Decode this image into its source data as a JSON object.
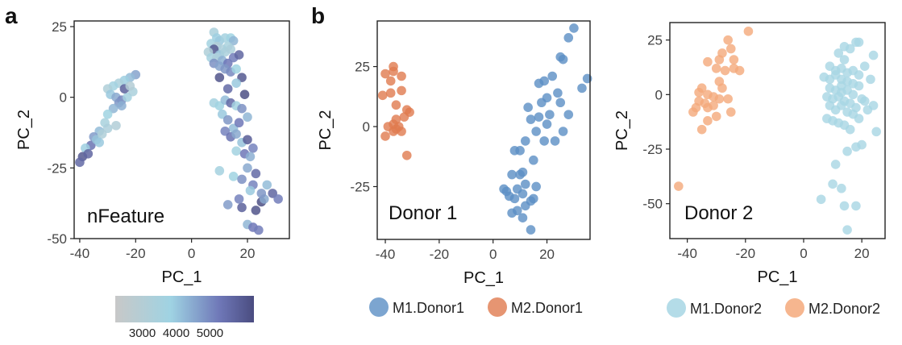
{
  "panel_labels": {
    "a": "a",
    "b": "b"
  },
  "legend_b1": {
    "items": [
      "M1.Donor1",
      "M2.Donor1"
    ]
  },
  "legend_b2": {
    "items": [
      "M1.Donor2",
      "M2.Donor2"
    ]
  },
  "colorbar": {
    "ticks": [
      "3000",
      "4000",
      "5000"
    ],
    "range": [
      2200,
      6300
    ],
    "colors": [
      "#c8c8c8",
      "#9fd3e3",
      "#6f78b8",
      "#4a4c80"
    ]
  },
  "chart_data": [
    {
      "type": "scatter",
      "title": "",
      "xlabel": "PC_1",
      "ylabel": "PC_2",
      "xlim": [
        -42,
        35
      ],
      "ylim": [
        -50,
        27
      ],
      "xticks": [
        -40,
        -20,
        0,
        20
      ],
      "yticks": [
        25,
        0,
        -25,
        -50
      ],
      "xtick_labels": [
        "-40",
        "-20",
        "0",
        "20"
      ],
      "ytick_labels": [
        "25",
        "0",
        "-25",
        "-50"
      ],
      "annotation": "nFeature",
      "color_by": "nFeature",
      "points": [
        [
          -20,
          8,
          4600
        ],
        [
          -22,
          7,
          4200
        ],
        [
          -24,
          6,
          3900
        ],
        [
          -26,
          5,
          3400
        ],
        [
          -28,
          4,
          3700
        ],
        [
          -30,
          3,
          3200
        ],
        [
          -29,
          1,
          4000
        ],
        [
          -27,
          0,
          4500
        ],
        [
          -25,
          -1,
          5000
        ],
        [
          -23,
          0,
          3600
        ],
        [
          -21,
          2,
          3400
        ],
        [
          -24,
          3,
          5800
        ],
        [
          -26,
          -2,
          4800
        ],
        [
          -28,
          -4,
          4300
        ],
        [
          -30,
          -6,
          3800
        ],
        [
          -31,
          -9,
          3500
        ],
        [
          -30,
          -11,
          3300
        ],
        [
          -33,
          -12,
          4200
        ],
        [
          -27,
          -10,
          3100
        ],
        [
          -35,
          -14,
          4700
        ],
        [
          -36,
          -17,
          5400
        ],
        [
          -38,
          -18,
          3900
        ],
        [
          -39,
          -21,
          6000
        ],
        [
          -37,
          -20,
          5700
        ],
        [
          -40,
          -23,
          5600
        ],
        [
          -34,
          -15,
          4100
        ],
        [
          -32,
          -13,
          3200
        ],
        [
          -22,
          4,
          3000
        ],
        [
          -25,
          -3,
          4400
        ],
        [
          -33,
          -16,
          4000
        ],
        [
          8,
          23,
          3400
        ],
        [
          9,
          21,
          3900
        ],
        [
          10,
          20,
          4000
        ],
        [
          12,
          21,
          3600
        ],
        [
          14,
          21,
          3800
        ],
        [
          15,
          20,
          4300
        ],
        [
          7,
          19,
          3700
        ],
        [
          9,
          18,
          3100
        ],
        [
          11,
          17,
          3300
        ],
        [
          13,
          18,
          3500
        ],
        [
          8,
          17,
          6000
        ],
        [
          10,
          15,
          4100
        ],
        [
          12,
          16,
          3400
        ],
        [
          14,
          17,
          3300
        ],
        [
          6,
          16,
          3200
        ],
        [
          7,
          14,
          3600
        ],
        [
          9,
          14,
          3300
        ],
        [
          11,
          13,
          4400
        ],
        [
          13,
          12,
          5300
        ],
        [
          15,
          14,
          5200
        ],
        [
          17,
          15,
          5700
        ],
        [
          8,
          12,
          4900
        ],
        [
          10,
          11,
          4600
        ],
        [
          12,
          10,
          4800
        ],
        [
          10,
          7,
          6100
        ],
        [
          14,
          9,
          5000
        ],
        [
          16,
          10,
          3800
        ],
        [
          18,
          7,
          6000
        ],
        [
          19,
          1,
          6200
        ],
        [
          16,
          5,
          4000
        ],
        [
          13,
          3,
          5600
        ],
        [
          8,
          -2,
          3600
        ],
        [
          10,
          -3,
          3800
        ],
        [
          12,
          -1,
          4200
        ],
        [
          14,
          -2,
          5600
        ],
        [
          16,
          -3,
          3700
        ],
        [
          18,
          -4,
          4900
        ],
        [
          20,
          -7,
          4300
        ],
        [
          11,
          -6,
          4000
        ],
        [
          13,
          -8,
          4800
        ],
        [
          15,
          -11,
          4200
        ],
        [
          17,
          -9,
          5300
        ],
        [
          12,
          -12,
          5100
        ],
        [
          14,
          -14,
          5400
        ],
        [
          16,
          -13,
          4500
        ],
        [
          18,
          -16,
          4100
        ],
        [
          20,
          -15,
          5900
        ],
        [
          22,
          -18,
          5100
        ],
        [
          16,
          -19,
          3700
        ],
        [
          19,
          -20,
          5300
        ],
        [
          21,
          -21,
          4400
        ],
        [
          10,
          -26,
          3600
        ],
        [
          15,
          -28,
          3800
        ],
        [
          20,
          -25,
          4500
        ],
        [
          23,
          -27,
          5600
        ],
        [
          18,
          -29,
          4900
        ],
        [
          22,
          -31,
          5100
        ],
        [
          27,
          -31,
          4200
        ],
        [
          29,
          -34,
          5700
        ],
        [
          31,
          -36,
          5200
        ],
        [
          13,
          -38,
          4700
        ],
        [
          18,
          -39,
          5800
        ],
        [
          25,
          -37,
          6200
        ],
        [
          23,
          -40,
          6100
        ],
        [
          20,
          -45,
          4300
        ],
        [
          22,
          -46,
          5300
        ],
        [
          24,
          -47,
          5200
        ],
        [
          26,
          -36,
          4500
        ],
        [
          21,
          -33,
          4000
        ],
        [
          17,
          -36,
          5100
        ],
        [
          25,
          -34,
          4800
        ]
      ]
    },
    {
      "type": "scatter",
      "title": "",
      "xlabel": "PC_1",
      "ylabel": "PC_2",
      "xlim": [
        -43,
        36
      ],
      "ylim": [
        -47,
        44
      ],
      "xticks": [
        -40,
        -20,
        0,
        20
      ],
      "yticks": [
        25,
        0,
        -25
      ],
      "xtick_labels": [
        "-40",
        "-20",
        "0",
        "20"
      ],
      "ytick_labels": [
        "25",
        "0",
        "-25"
      ],
      "annotation": "Donor 1",
      "series": [
        {
          "name": "M1.Donor1",
          "color": "#5b8ec4",
          "points": [
            [
              30,
              41
            ],
            [
              28,
              37
            ],
            [
              25,
              29
            ],
            [
              26,
              28
            ],
            [
              22,
              21
            ],
            [
              19,
              19
            ],
            [
              17,
              18
            ],
            [
              35,
              20
            ],
            [
              33,
              16
            ],
            [
              24,
              14
            ],
            [
              20,
              12
            ],
            [
              25,
              10
            ],
            [
              18,
              10
            ],
            [
              13,
              8
            ],
            [
              21,
              5
            ],
            [
              28,
              5
            ],
            [
              17,
              4
            ],
            [
              14,
              3
            ],
            [
              20,
              1
            ],
            [
              16,
              -2
            ],
            [
              26,
              -2
            ],
            [
              19,
              -6
            ],
            [
              23,
              -6
            ],
            [
              12,
              -6
            ],
            [
              10,
              -10
            ],
            [
              8,
              -10
            ],
            [
              15,
              -14
            ],
            [
              11,
              -19
            ],
            [
              10,
              -20
            ],
            [
              7,
              -20
            ],
            [
              12,
              -24
            ],
            [
              9,
              -26
            ],
            [
              11,
              -28
            ],
            [
              5,
              -27
            ],
            [
              4,
              -26
            ],
            [
              6,
              -29
            ],
            [
              8,
              -30
            ],
            [
              15,
              -30
            ],
            [
              14,
              -31
            ],
            [
              12,
              -33
            ],
            [
              9,
              -35
            ],
            [
              7,
              -36
            ],
            [
              14,
              -43
            ],
            [
              11,
              -38
            ],
            [
              16,
              -25
            ]
          ]
        },
        {
          "name": "M2.Donor1",
          "color": "#e07a4f",
          "points": [
            [
              -37,
              25
            ],
            [
              -37,
              23
            ],
            [
              -40,
              22
            ],
            [
              -34,
              21
            ],
            [
              -38,
              19
            ],
            [
              -38,
              14
            ],
            [
              -34,
              15
            ],
            [
              -41,
              13
            ],
            [
              -36,
              9
            ],
            [
              -32,
              7
            ],
            [
              -31,
              6
            ],
            [
              -33,
              4
            ],
            [
              -39,
              0
            ],
            [
              -37,
              1
            ],
            [
              -36,
              -1
            ],
            [
              -35,
              0
            ],
            [
              -37,
              -2
            ],
            [
              -40,
              -4
            ],
            [
              -32,
              -12
            ],
            [
              -36,
              3
            ],
            [
              -34,
              -2
            ]
          ]
        }
      ]
    },
    {
      "type": "scatter",
      "title": "",
      "xlabel": "PC_1",
      "ylabel": "PC_2",
      "xlim": [
        -46,
        28
      ],
      "ylim": [
        -66,
        33
      ],
      "xticks": [
        -40,
        -20,
        0,
        20
      ],
      "yticks": [
        25,
        0,
        -25,
        -50
      ],
      "xtick_labels": [
        "-40",
        "-20",
        "0",
        "20"
      ],
      "ytick_labels": [
        "25",
        "0",
        "-25",
        "-50"
      ],
      "annotation": "Donor 2",
      "series": [
        {
          "name": "M1.Donor2",
          "color": "#a7d6e4",
          "points": [
            [
              14,
              22
            ],
            [
              16,
              21
            ],
            [
              19,
              24
            ],
            [
              18,
              24
            ],
            [
              24,
              18
            ],
            [
              12,
              19
            ],
            [
              14,
              16
            ],
            [
              9,
              13
            ],
            [
              11,
              11
            ],
            [
              13,
              12
            ],
            [
              15,
              10
            ],
            [
              17,
              11
            ],
            [
              19,
              9
            ],
            [
              21,
              13
            ],
            [
              7,
              8
            ],
            [
              9,
              7
            ],
            [
              11,
              9
            ],
            [
              13,
              7
            ],
            [
              15,
              6
            ],
            [
              17,
              5
            ],
            [
              19,
              4
            ],
            [
              23,
              7
            ],
            [
              9,
              3
            ],
            [
              11,
              2
            ],
            [
              13,
              1
            ],
            [
              15,
              2
            ],
            [
              17,
              0
            ],
            [
              8,
              -1
            ],
            [
              10,
              -2
            ],
            [
              12,
              -1
            ],
            [
              14,
              -3
            ],
            [
              16,
              -4
            ],
            [
              18,
              -6
            ],
            [
              20,
              -2
            ],
            [
              9,
              -5
            ],
            [
              11,
              -7
            ],
            [
              13,
              -5
            ],
            [
              15,
              -8
            ],
            [
              17,
              -9
            ],
            [
              19,
              -11
            ],
            [
              8,
              -11
            ],
            [
              10,
              -12
            ],
            [
              12,
              -13
            ],
            [
              14,
              -14
            ],
            [
              16,
              -16
            ],
            [
              22,
              -7
            ],
            [
              24,
              -5
            ],
            [
              25,
              -17
            ],
            [
              20,
              -23
            ],
            [
              18,
              -24
            ],
            [
              15,
              -26
            ],
            [
              13,
              -43
            ],
            [
              14,
              -51
            ],
            [
              18,
              -51
            ],
            [
              6,
              -48
            ],
            [
              15,
              -62
            ],
            [
              10,
              -41
            ],
            [
              11,
              -32
            ],
            [
              21,
              -3
            ],
            [
              13,
              4
            ]
          ]
        },
        {
          "name": "M2.Donor2",
          "color": "#f4a97b",
          "points": [
            [
              -19,
              29
            ],
            [
              -26,
              25
            ],
            [
              -25,
              21
            ],
            [
              -28,
              19
            ],
            [
              -29,
              16
            ],
            [
              -33,
              15
            ],
            [
              -24,
              16
            ],
            [
              -27,
              11
            ],
            [
              -24,
              12
            ],
            [
              -22,
              11
            ],
            [
              -30,
              12
            ],
            [
              -35,
              3
            ],
            [
              -36,
              1
            ],
            [
              -33,
              0
            ],
            [
              -29,
              -2
            ],
            [
              -31,
              -1
            ],
            [
              -28,
              3
            ],
            [
              -34,
              -4
            ],
            [
              -36,
              -3
            ],
            [
              -33,
              -6
            ],
            [
              -38,
              -8
            ],
            [
              -37,
              -6
            ],
            [
              -25,
              -8
            ],
            [
              -26,
              -2
            ],
            [
              -30,
              -10
            ],
            [
              -33,
              -12
            ],
            [
              -35,
              -16
            ],
            [
              -43,
              -42
            ],
            [
              -31,
              -5
            ],
            [
              -29,
              6
            ]
          ]
        }
      ]
    }
  ]
}
